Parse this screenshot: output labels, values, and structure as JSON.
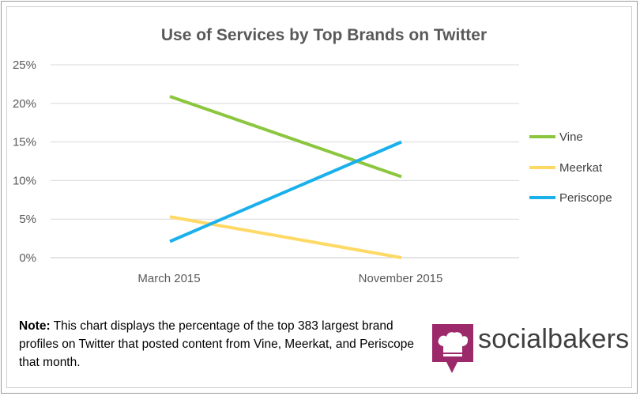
{
  "chart_data": {
    "type": "line",
    "title": "Use of Services by Top Brands on Twitter",
    "categories": [
      "March 2015",
      "November 2015"
    ],
    "series": [
      {
        "name": "Vine",
        "values": [
          20.9,
          10.5
        ],
        "color": "#8cc63f"
      },
      {
        "name": "Meerkat",
        "values": [
          5.3,
          0.0
        ],
        "color": "#ffd966"
      },
      {
        "name": "Periscope",
        "values": [
          2.1,
          15.0
        ],
        "color": "#1ab0ec"
      }
    ],
    "y_ticks": [
      "0%",
      "5%",
      "10%",
      "15%",
      "20%",
      "25%"
    ],
    "ylim": [
      0,
      25
    ],
    "grid": true,
    "legend": "right"
  },
  "note": {
    "label": "Note:",
    "text": " This chart displays the percentage of the top 383 largest brand profiles on Twitter that posted content from Vine, Meerkat, and Periscope that month."
  },
  "brand": {
    "name": "socialbakers",
    "logo_icon": "chef-hat-speech-bubble-icon",
    "logo_color": "#9c2a6b"
  }
}
